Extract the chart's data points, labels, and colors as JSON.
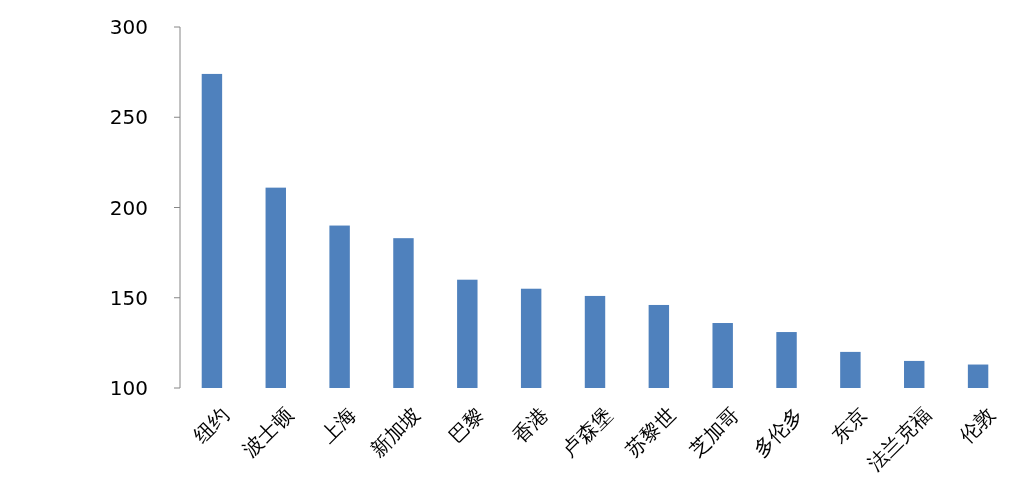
{
  "chart_data": {
    "type": "bar",
    "categories": [
      "纽约",
      "波士顿",
      "上海",
      "新加坡",
      "巴黎",
      "香港",
      "卢森堡",
      "苏黎世",
      "芝加哥",
      "多伦多",
      "东京",
      "法兰克福",
      "伦敦"
    ],
    "values": [
      274,
      211,
      190,
      183,
      160,
      155,
      151,
      146,
      136,
      131,
      120,
      115,
      113
    ],
    "color": "#4f81bd",
    "ylim": [
      100,
      300
    ],
    "yticks": [
      100,
      150,
      200,
      250,
      300
    ],
    "grid": false
  }
}
